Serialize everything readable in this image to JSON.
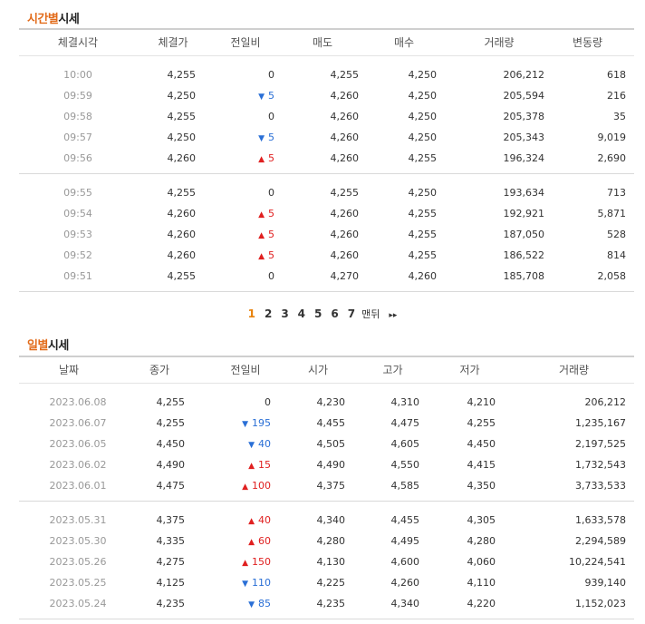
{
  "intraday": {
    "title_hl": "시간별",
    "title_rest": "시세",
    "headers": [
      "체결시각",
      "체결가",
      "전일비",
      "매도",
      "매수",
      "거래량",
      "변동량"
    ],
    "groups": [
      [
        {
          "time": "10:00",
          "price": "4,255",
          "dir": "flat",
          "chg": "0",
          "ask": "4,255",
          "bid": "4,250",
          "vol": "206,212",
          "delta": "618"
        },
        {
          "time": "09:59",
          "price": "4,250",
          "dir": "down",
          "chg": "5",
          "ask": "4,260",
          "bid": "4,250",
          "vol": "205,594",
          "delta": "216"
        },
        {
          "time": "09:58",
          "price": "4,255",
          "dir": "flat",
          "chg": "0",
          "ask": "4,260",
          "bid": "4,250",
          "vol": "205,378",
          "delta": "35"
        },
        {
          "time": "09:57",
          "price": "4,250",
          "dir": "down",
          "chg": "5",
          "ask": "4,260",
          "bid": "4,250",
          "vol": "205,343",
          "delta": "9,019"
        },
        {
          "time": "09:56",
          "price": "4,260",
          "dir": "up",
          "chg": "5",
          "ask": "4,260",
          "bid": "4,255",
          "vol": "196,324",
          "delta": "2,690"
        }
      ],
      [
        {
          "time": "09:55",
          "price": "4,255",
          "dir": "flat",
          "chg": "0",
          "ask": "4,255",
          "bid": "4,250",
          "vol": "193,634",
          "delta": "713"
        },
        {
          "time": "09:54",
          "price": "4,260",
          "dir": "up",
          "chg": "5",
          "ask": "4,260",
          "bid": "4,255",
          "vol": "192,921",
          "delta": "5,871"
        },
        {
          "time": "09:53",
          "price": "4,260",
          "dir": "up",
          "chg": "5",
          "ask": "4,260",
          "bid": "4,255",
          "vol": "187,050",
          "delta": "528"
        },
        {
          "time": "09:52",
          "price": "4,260",
          "dir": "up",
          "chg": "5",
          "ask": "4,260",
          "bid": "4,255",
          "vol": "186,522",
          "delta": "814"
        },
        {
          "time": "09:51",
          "price": "4,255",
          "dir": "flat",
          "chg": "0",
          "ask": "4,270",
          "bid": "4,260",
          "vol": "185,708",
          "delta": "2,058"
        }
      ]
    ]
  },
  "pager": {
    "pages": [
      "1",
      "2",
      "3",
      "4",
      "5",
      "6",
      "7"
    ],
    "current": "1",
    "last_label": "맨뒤",
    "next_label": "▸▸"
  },
  "daily": {
    "title_hl": "일별",
    "title_rest": "시세",
    "headers": [
      "날짜",
      "종가",
      "전일비",
      "시가",
      "고가",
      "저가",
      "거래량"
    ],
    "groups": [
      [
        {
          "date": "2023.06.08",
          "close": "4,255",
          "dir": "flat",
          "chg": "0",
          "open": "4,230",
          "high": "4,310",
          "low": "4,210",
          "vol": "206,212"
        },
        {
          "date": "2023.06.07",
          "close": "4,255",
          "dir": "down",
          "chg": "195",
          "open": "4,455",
          "high": "4,475",
          "low": "4,255",
          "vol": "1,235,167"
        },
        {
          "date": "2023.06.05",
          "close": "4,450",
          "dir": "down",
          "chg": "40",
          "open": "4,505",
          "high": "4,605",
          "low": "4,450",
          "vol": "2,197,525"
        },
        {
          "date": "2023.06.02",
          "close": "4,490",
          "dir": "up",
          "chg": "15",
          "open": "4,490",
          "high": "4,550",
          "low": "4,415",
          "vol": "1,732,543"
        },
        {
          "date": "2023.06.01",
          "close": "4,475",
          "dir": "up",
          "chg": "100",
          "open": "4,375",
          "high": "4,585",
          "low": "4,350",
          "vol": "3,733,533"
        }
      ],
      [
        {
          "date": "2023.05.31",
          "close": "4,375",
          "dir": "up",
          "chg": "40",
          "open": "4,340",
          "high": "4,455",
          "low": "4,305",
          "vol": "1,633,578"
        },
        {
          "date": "2023.05.30",
          "close": "4,335",
          "dir": "up",
          "chg": "60",
          "open": "4,280",
          "high": "4,495",
          "low": "4,280",
          "vol": "2,294,589"
        },
        {
          "date": "2023.05.26",
          "close": "4,275",
          "dir": "up",
          "chg": "150",
          "open": "4,130",
          "high": "4,600",
          "low": "4,060",
          "vol": "10,224,541"
        },
        {
          "date": "2023.05.25",
          "close": "4,125",
          "dir": "down",
          "chg": "110",
          "open": "4,225",
          "high": "4,260",
          "low": "4,110",
          "vol": "939,140"
        },
        {
          "date": "2023.05.24",
          "close": "4,235",
          "dir": "down",
          "chg": "85",
          "open": "4,235",
          "high": "4,340",
          "low": "4,220",
          "vol": "1,152,023"
        }
      ]
    ]
  }
}
